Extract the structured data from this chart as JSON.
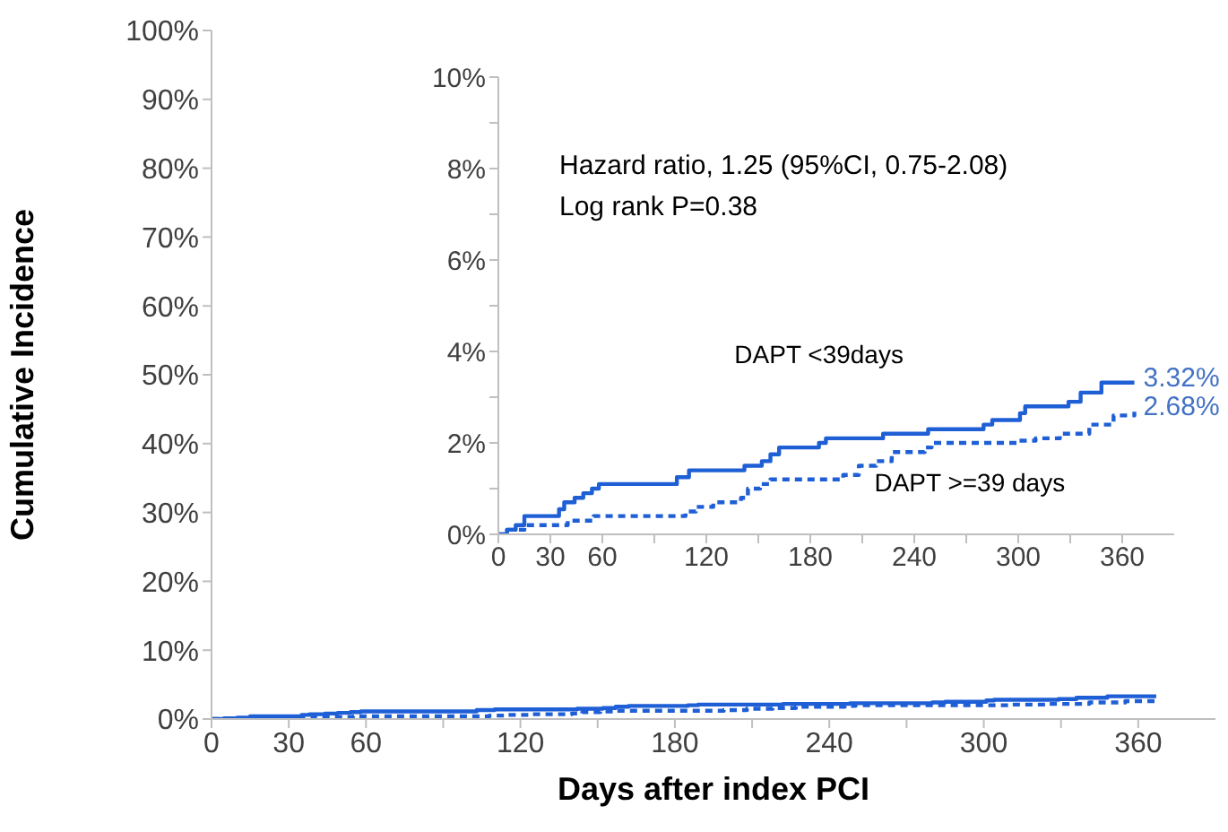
{
  "chart_data": [
    {
      "type": "step",
      "xlabel": "Days after index PCI",
      "ylabel": "Cumulative Incidence",
      "xlim": [
        0,
        390
      ],
      "xticks": [
        0,
        30,
        60,
        {
          "value": 90,
          "label": null
        },
        120,
        {
          "value": 150,
          "label": null
        },
        180,
        {
          "value": 210,
          "label": null
        },
        240,
        {
          "value": 270,
          "label": null
        },
        300,
        {
          "value": 330,
          "label": null
        },
        360
      ],
      "ylim": [
        0,
        100
      ],
      "yticks": [
        {
          "value": 0,
          "label": "0%"
        },
        {
          "value": 10,
          "label": "10%"
        },
        {
          "value": 20,
          "label": "20%"
        },
        {
          "value": 30,
          "label": "30%"
        },
        {
          "value": 40,
          "label": "40%"
        },
        {
          "value": 50,
          "label": "50%"
        },
        {
          "value": 60,
          "label": "60%"
        },
        {
          "value": 70,
          "label": "70%"
        },
        {
          "value": 80,
          "label": "80%"
        },
        {
          "value": 90,
          "label": "90%"
        },
        {
          "value": 100,
          "label": "100%"
        }
      ],
      "marker": "none",
      "series": [
        {
          "color": "#1f5fd6",
          "line_style": "solid",
          "x": [
            0,
            5,
            10,
            15,
            35,
            38,
            44,
            49,
            54,
            58,
            103,
            110,
            142,
            152,
            157,
            162,
            185,
            189,
            222,
            248,
            280,
            285,
            301,
            304,
            329,
            336,
            348,
            367
          ],
          "values": [
            0,
            0.1,
            0.2,
            0.4,
            0.6,
            0.7,
            0.8,
            0.9,
            1.0,
            1.1,
            1.3,
            1.4,
            1.5,
            1.6,
            1.8,
            1.9,
            2.0,
            2.1,
            2.2,
            2.3,
            2.4,
            2.5,
            2.7,
            2.8,
            2.9,
            3.1,
            3.3,
            3.3
          ]
        },
        {
          "color": "#1f5fd6",
          "line_style": "dashed",
          "x": [
            0,
            5,
            15,
            40,
            55,
            108,
            114,
            124,
            140,
            144,
            151,
            157,
            199,
            208,
            218,
            227,
            246,
            250,
            299,
            310,
            324,
            341,
            355,
            367
          ],
          "values": [
            0,
            0.1,
            0.2,
            0.3,
            0.4,
            0.5,
            0.6,
            0.7,
            0.8,
            1.0,
            1.1,
            1.2,
            1.3,
            1.5,
            1.6,
            1.8,
            1.9,
            2.0,
            2.0,
            2.1,
            2.2,
            2.4,
            2.6,
            2.7
          ]
        }
      ]
    },
    {
      "type": "step",
      "xlim": [
        0,
        390
      ],
      "xticks": [
        0,
        30,
        60,
        {
          "value": 90,
          "label": null
        },
        120,
        {
          "value": 150,
          "label": null
        },
        180,
        {
          "value": 210,
          "label": null
        },
        240,
        {
          "value": 270,
          "label": null
        },
        300,
        {
          "value": 330,
          "label": null
        },
        360
      ],
      "ylim": [
        0,
        10
      ],
      "yticks": [
        {
          "value": 0,
          "label": "0%"
        },
        {
          "value": 1,
          "label": null
        },
        {
          "value": 2,
          "label": "2%"
        },
        {
          "value": 3,
          "label": null
        },
        {
          "value": 4,
          "label": "4%"
        },
        {
          "value": 5,
          "label": null
        },
        {
          "value": 6,
          "label": "6%"
        },
        {
          "value": 7,
          "label": null
        },
        {
          "value": 8,
          "label": "8%"
        },
        {
          "value": 9,
          "label": null
        },
        {
          "value": 10,
          "label": "10%"
        }
      ],
      "marker": "none",
      "annotations": [
        "Hazard ratio, 1.25 (95%CI, 0.75-2.08)",
        "Log rank P=0.38",
        {
          "text": "3.32%",
          "x": 367,
          "y": 3.32
        },
        {
          "text": "2.68%",
          "x": 367,
          "y": 2.68
        }
      ],
      "series": [
        {
          "name": "DAPT <39days",
          "color": "#1f5fd6",
          "line_style": "solid",
          "x": [
            0,
            5,
            10,
            15,
            35,
            38,
            44,
            49,
            54,
            58,
            103,
            110,
            142,
            152,
            157,
            162,
            185,
            189,
            222,
            248,
            280,
            285,
            301,
            304,
            329,
            336,
            348,
            367
          ],
          "values": [
            0,
            0.1,
            0.2,
            0.4,
            0.55,
            0.7,
            0.8,
            0.9,
            1.0,
            1.1,
            1.25,
            1.4,
            1.5,
            1.6,
            1.75,
            1.9,
            2.0,
            2.1,
            2.2,
            2.3,
            2.4,
            2.5,
            2.65,
            2.8,
            2.9,
            3.1,
            3.32,
            3.32
          ]
        },
        {
          "name": "DAPT >=39 days",
          "color": "#1f5fd6",
          "line_style": "dashed",
          "x": [
            0,
            5,
            15,
            40,
            55,
            108,
            114,
            124,
            140,
            144,
            151,
            157,
            199,
            208,
            218,
            227,
            246,
            250,
            299,
            310,
            324,
            341,
            355,
            367
          ],
          "values": [
            0,
            0.1,
            0.2,
            0.3,
            0.4,
            0.5,
            0.6,
            0.7,
            0.8,
            1.0,
            1.1,
            1.2,
            1.3,
            1.5,
            1.6,
            1.8,
            1.9,
            2.0,
            2.05,
            2.1,
            2.2,
            2.4,
            2.6,
            2.68
          ]
        }
      ]
    }
  ]
}
